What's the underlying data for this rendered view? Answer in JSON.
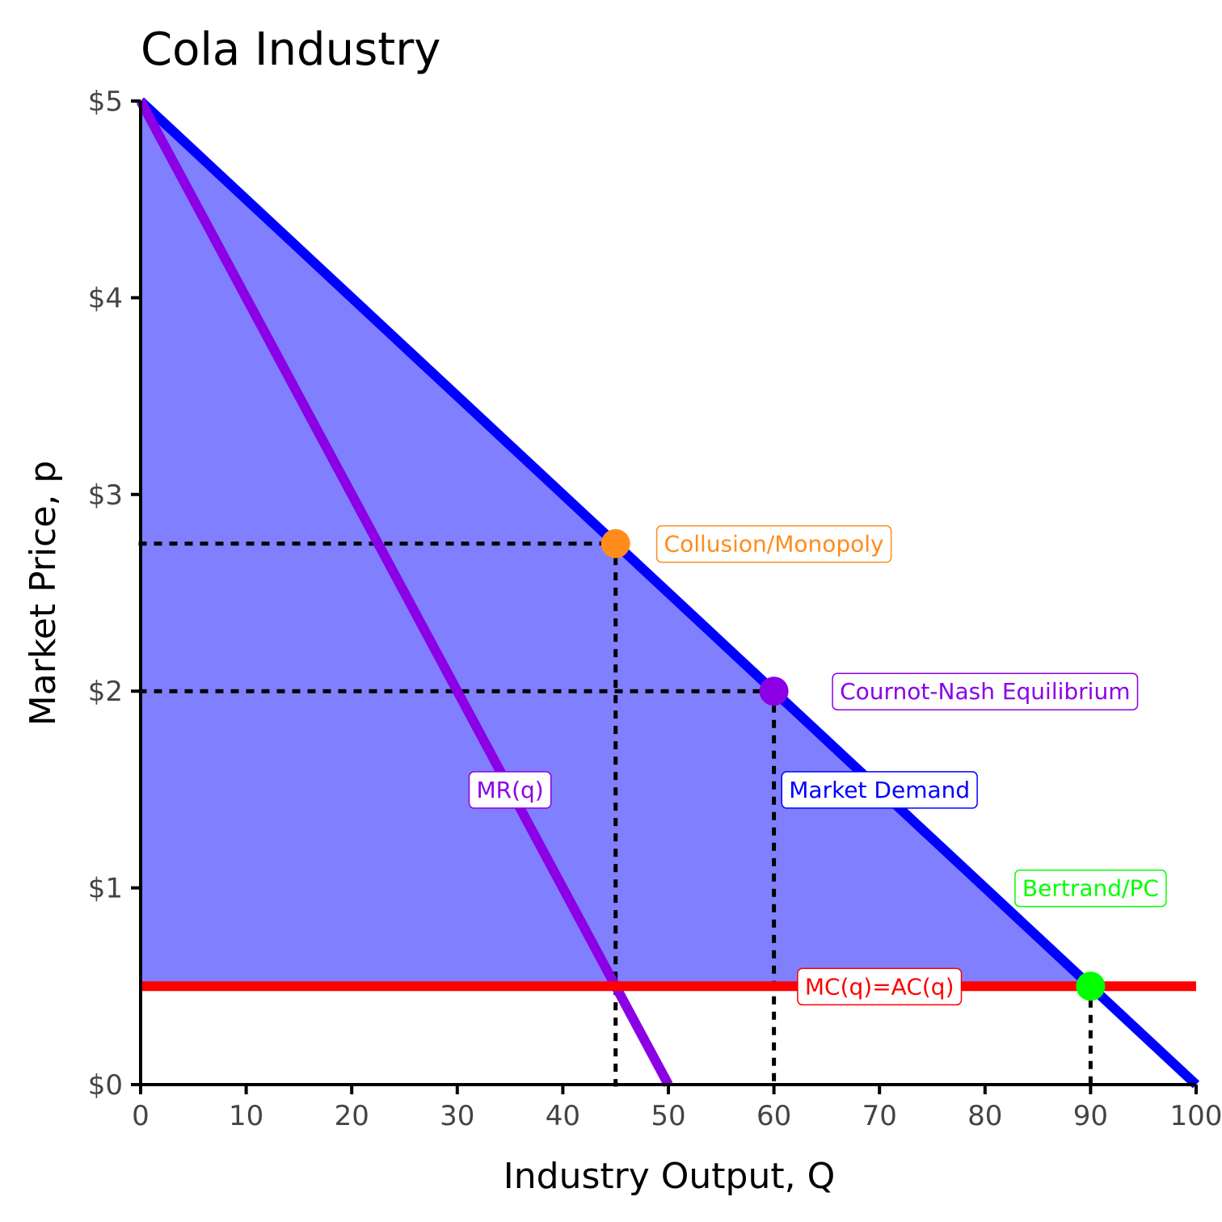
{
  "chart_data": {
    "type": "line",
    "title": "Cola Industry",
    "xlabel": "Industry Output, Q",
    "ylabel": "Market Price, p",
    "xlim": [
      0,
      100
    ],
    "ylim": [
      0,
      5
    ],
    "x_ticks": [
      0,
      10,
      20,
      30,
      40,
      50,
      60,
      70,
      80,
      90,
      100
    ],
    "x_tick_labels": [
      "0",
      "10",
      "20",
      "30",
      "40",
      "50",
      "60",
      "70",
      "80",
      "90",
      "100"
    ],
    "y_ticks": [
      0,
      1,
      2,
      3,
      4,
      5
    ],
    "y_tick_labels": [
      "$0",
      "$1",
      "$2",
      "$3",
      "$4",
      "$5"
    ],
    "grid": false,
    "series": [
      {
        "name": "Market Demand",
        "x": [
          0,
          100
        ],
        "y": [
          5,
          0
        ],
        "color": "#0000ff"
      },
      {
        "name": "MR(q)",
        "x": [
          0,
          50
        ],
        "y": [
          5,
          0
        ],
        "color": "#8c00e6"
      },
      {
        "name": "MC(q)=AC(q)",
        "x": [
          0,
          100
        ],
        "y": [
          0.5,
          0.5
        ],
        "color": "#ff0000"
      }
    ],
    "shaded_area": {
      "vertices": [
        [
          0,
          5
        ],
        [
          90,
          0.5
        ],
        [
          0,
          0.5
        ]
      ],
      "color": "#8080ff"
    },
    "points": [
      {
        "name": "Collusion/Monopoly",
        "x": 45,
        "y": 2.75,
        "color": "#ff8c1a"
      },
      {
        "name": "Cournot-Nash Equilibrium",
        "x": 60,
        "y": 2,
        "color": "#8c00e6"
      },
      {
        "name": "Bertrand/PC",
        "x": 90,
        "y": 0.5,
        "color": "#00ff00"
      }
    ],
    "annotations": [
      {
        "text": "Collusion/Monopoly",
        "x": 60,
        "y": 2.75,
        "color": "#ff8c1a"
      },
      {
        "text": "Cournot-Nash Equilibrium",
        "x": 80,
        "y": 2,
        "color": "#8c00e6"
      },
      {
        "text": "Market Demand",
        "x": 70,
        "y": 1.5,
        "color": "#0000ff"
      },
      {
        "text": "MR(q)",
        "x": 35,
        "y": 1.5,
        "color": "#8c00e6"
      },
      {
        "text": "Bertrand/PC",
        "x": 90,
        "y": 1,
        "color": "#00ff00"
      },
      {
        "text": "MC(q)=AC(q)",
        "x": 70,
        "y": 0.5,
        "color": "#ff0000"
      }
    ]
  }
}
